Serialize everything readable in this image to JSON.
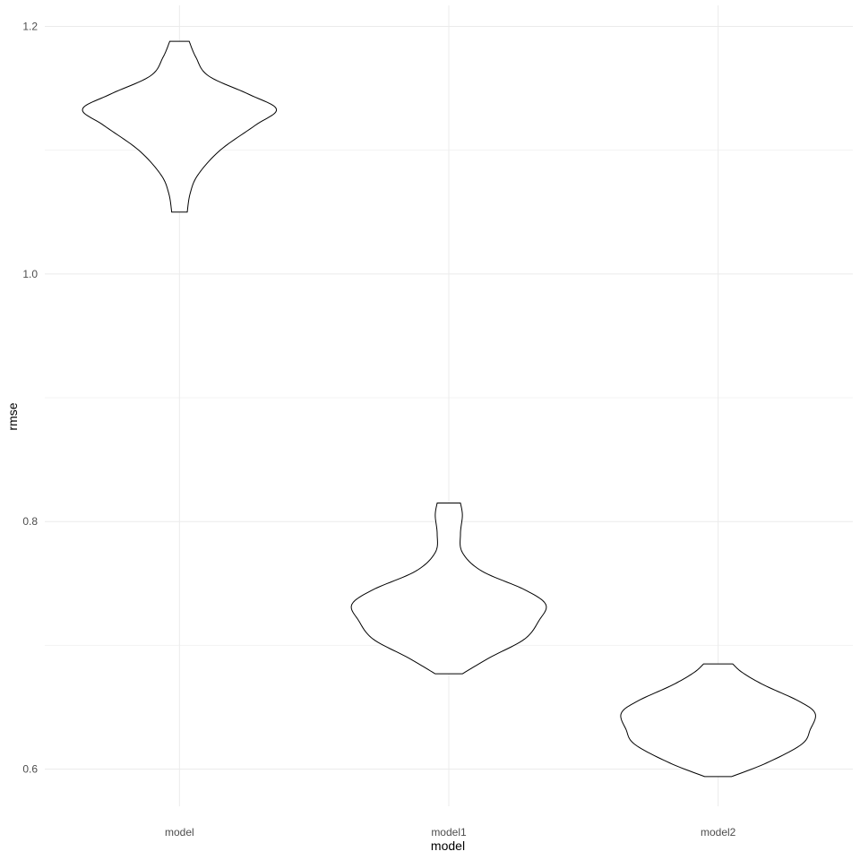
{
  "chart_data": {
    "type": "violin",
    "xlabel": "model",
    "ylabel": "rmse",
    "categories": [
      "model",
      "model1",
      "model2"
    ],
    "ylim": [
      0.57,
      1.217
    ],
    "yticks": [
      0.6,
      0.8,
      1.0,
      1.2
    ],
    "ytick_labels": [
      "0.6",
      "0.8",
      "1.0",
      "1.2"
    ],
    "yminor": [
      0.7,
      0.9,
      1.1
    ],
    "grid": true,
    "legend": "none",
    "violins": [
      {
        "category": "model",
        "min": 1.05,
        "max": 1.188,
        "profile": [
          [
            1.05,
            0.08
          ],
          [
            1.065,
            0.11
          ],
          [
            1.08,
            0.19
          ],
          [
            1.1,
            0.42
          ],
          [
            1.12,
            0.78
          ],
          [
            1.133,
            1.0
          ],
          [
            1.145,
            0.72
          ],
          [
            1.16,
            0.3
          ],
          [
            1.175,
            0.17
          ],
          [
            1.188,
            0.1
          ]
        ]
      },
      {
        "category": "model1",
        "min": 0.677,
        "max": 0.815,
        "profile": [
          [
            0.677,
            0.14
          ],
          [
            0.69,
            0.42
          ],
          [
            0.705,
            0.78
          ],
          [
            0.72,
            0.93
          ],
          [
            0.733,
            1.0
          ],
          [
            0.745,
            0.78
          ],
          [
            0.76,
            0.34
          ],
          [
            0.775,
            0.14
          ],
          [
            0.79,
            0.12
          ],
          [
            0.805,
            0.14
          ],
          [
            0.815,
            0.12
          ]
        ]
      },
      {
        "category": "model2",
        "min": 0.594,
        "max": 0.685,
        "profile": [
          [
            0.594,
            0.14
          ],
          [
            0.605,
            0.5
          ],
          [
            0.62,
            0.86
          ],
          [
            0.632,
            0.95
          ],
          [
            0.645,
            1.0
          ],
          [
            0.655,
            0.83
          ],
          [
            0.668,
            0.47
          ],
          [
            0.678,
            0.25
          ],
          [
            0.685,
            0.15
          ]
        ]
      }
    ]
  }
}
